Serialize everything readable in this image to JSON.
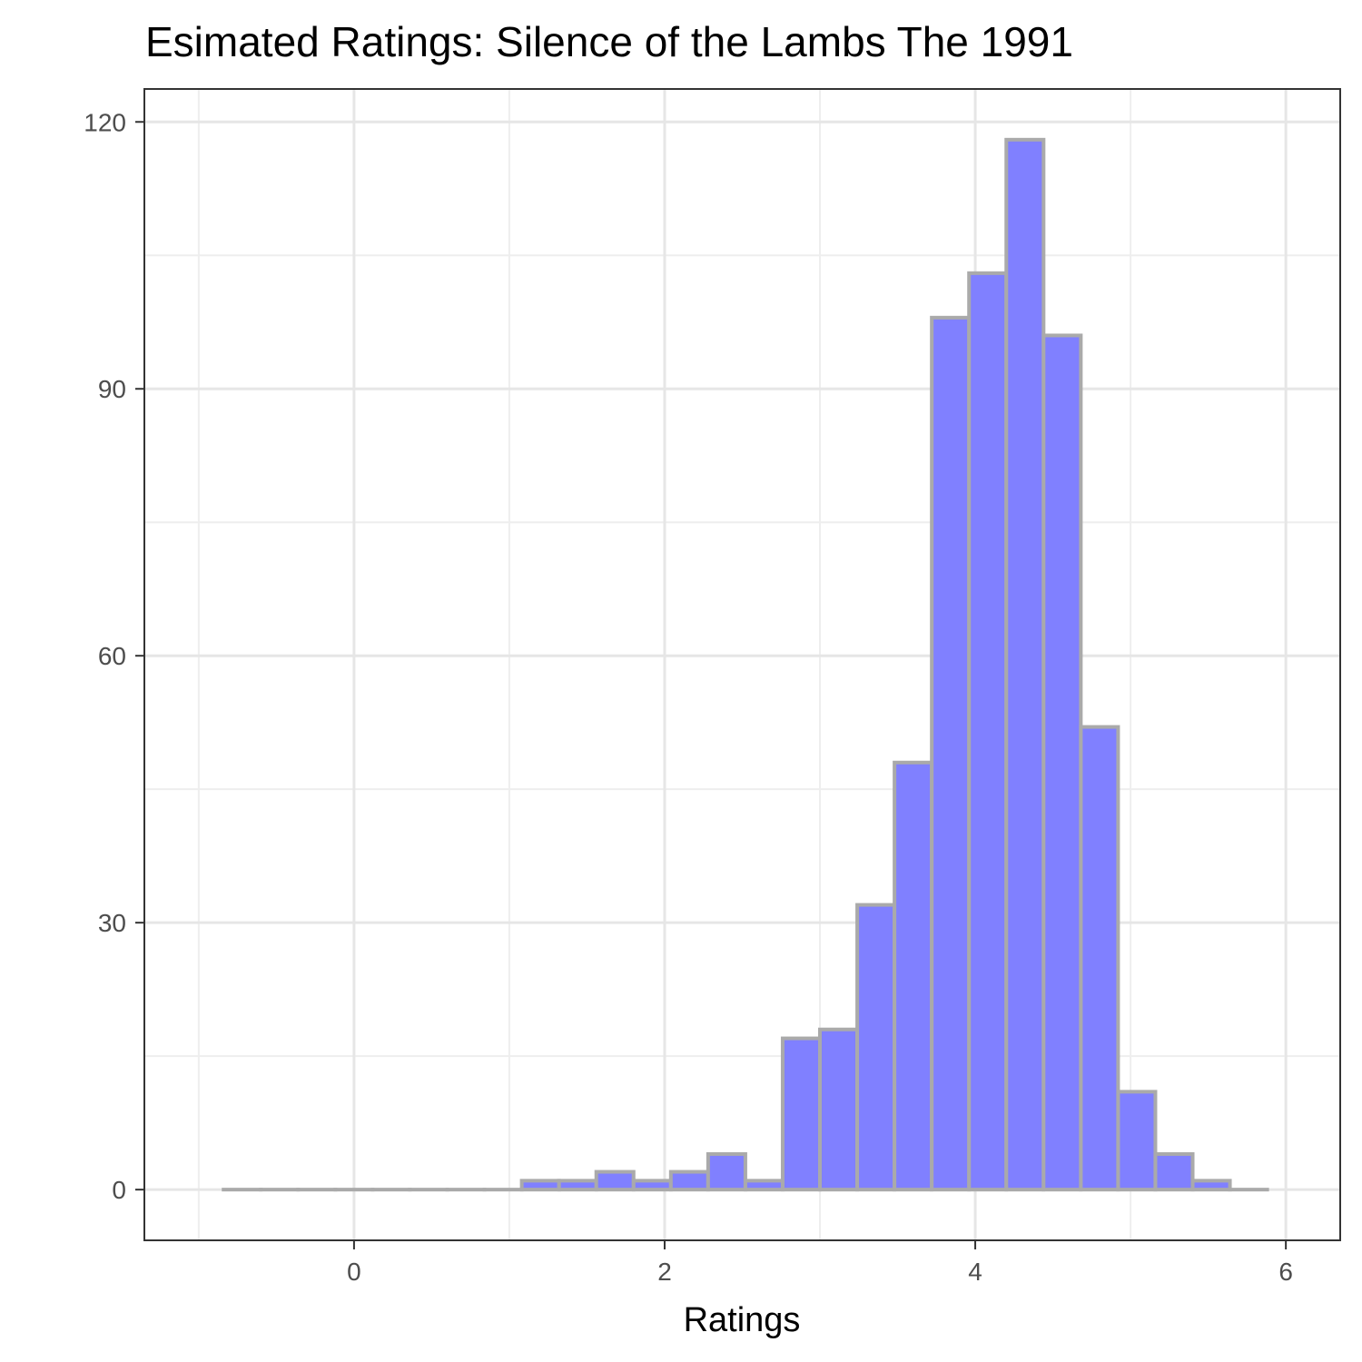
{
  "chart_data": {
    "type": "bar",
    "title": "Esimated Ratings: Silence of the Lambs  The  1991",
    "xlabel": "Ratings",
    "ylabel": "",
    "xlim": [
      -1.35,
      6.35
    ],
    "ylim": [
      -5.7,
      123.7
    ],
    "x_ticks": [
      0,
      2,
      4,
      6
    ],
    "y_ticks": [
      0,
      30,
      60,
      90,
      120
    ],
    "grid": true,
    "colors": {
      "fill": "#8080ff",
      "edge": "#aaaaaa",
      "grid": "#e6e6e6",
      "axis": "#333333"
    },
    "bins": [
      {
        "start": -0.84,
        "end": -0.6,
        "count": 0
      },
      {
        "start": -0.6,
        "end": -0.36,
        "count": 0
      },
      {
        "start": -0.36,
        "end": -0.12,
        "count": 0
      },
      {
        "start": -0.12,
        "end": 0.12,
        "count": 0
      },
      {
        "start": 0.12,
        "end": 0.36,
        "count": 0
      },
      {
        "start": 0.36,
        "end": 0.6,
        "count": 0
      },
      {
        "start": 0.6,
        "end": 0.84,
        "count": 0
      },
      {
        "start": 0.84,
        "end": 1.08,
        "count": 0
      },
      {
        "start": 1.08,
        "end": 1.32,
        "count": 1
      },
      {
        "start": 1.32,
        "end": 1.56,
        "count": 1
      },
      {
        "start": 1.56,
        "end": 1.8,
        "count": 2
      },
      {
        "start": 1.8,
        "end": 2.04,
        "count": 1
      },
      {
        "start": 2.04,
        "end": 2.28,
        "count": 2
      },
      {
        "start": 2.28,
        "end": 2.52,
        "count": 4
      },
      {
        "start": 2.52,
        "end": 2.76,
        "count": 1
      },
      {
        "start": 2.76,
        "end": 3.0,
        "count": 17
      },
      {
        "start": 3.0,
        "end": 3.24,
        "count": 18
      },
      {
        "start": 3.24,
        "end": 3.48,
        "count": 32
      },
      {
        "start": 3.48,
        "end": 3.72,
        "count": 48
      },
      {
        "start": 3.72,
        "end": 3.96,
        "count": 98
      },
      {
        "start": 3.96,
        "end": 4.2,
        "count": 103
      },
      {
        "start": 4.2,
        "end": 4.44,
        "count": 118
      },
      {
        "start": 4.44,
        "end": 4.68,
        "count": 96
      },
      {
        "start": 4.68,
        "end": 4.92,
        "count": 52
      },
      {
        "start": 4.92,
        "end": 5.16,
        "count": 11
      },
      {
        "start": 5.16,
        "end": 5.4,
        "count": 4
      },
      {
        "start": 5.4,
        "end": 5.64,
        "count": 1
      },
      {
        "start": 5.64,
        "end": 5.88,
        "count": 0
      }
    ]
  }
}
